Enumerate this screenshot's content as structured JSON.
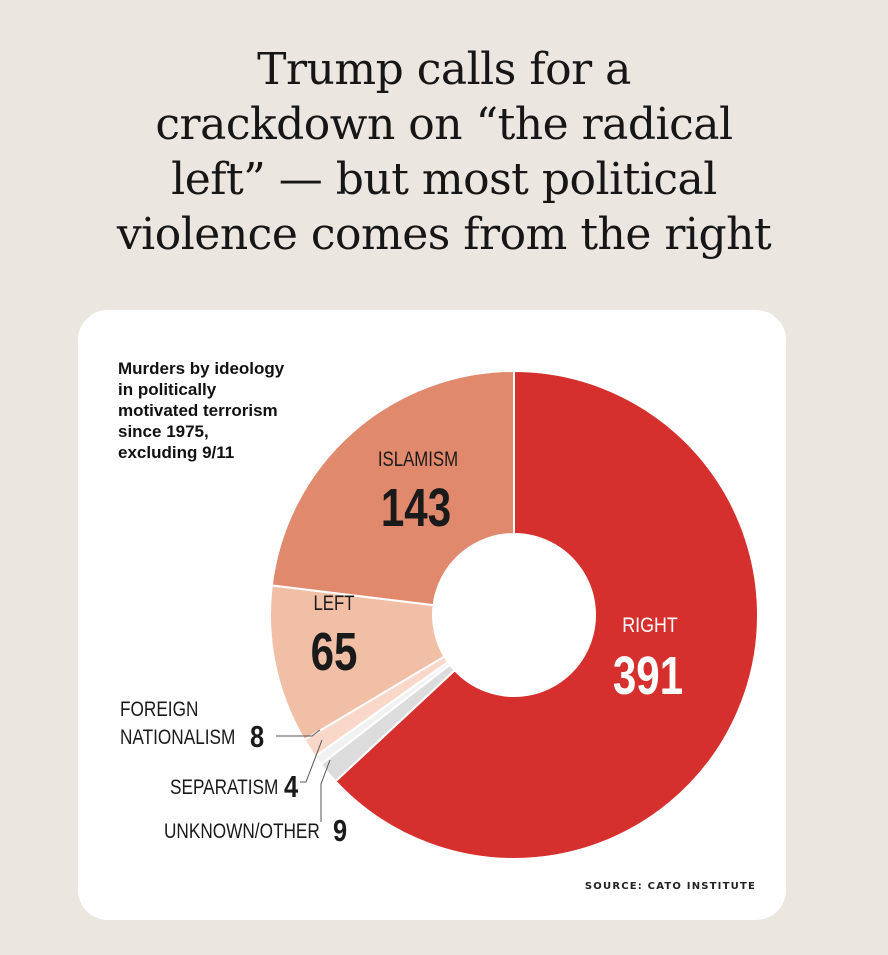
{
  "headline": {
    "line1": "Trump calls for a",
    "line2": "crackdown on “the radical",
    "line3": "left” — but most political",
    "line4": "violence comes from the right"
  },
  "subtitle": {
    "line1": "Murders by ideology",
    "line2": "in politically",
    "line3": "motivated terrorism",
    "line4": "since 1975,",
    "line5": "excluding 9/11"
  },
  "source": "SOURCE: CATO INSTITUTE",
  "chart_data": {
    "type": "pie",
    "donut": true,
    "title": "Murders by ideology in politically motivated terrorism since 1975, excluding 9/11",
    "categories": [
      "RIGHT",
      "UNKNOWN/OTHER",
      "SEPARATISM",
      "FOREIGN NATIONALISM",
      "LEFT",
      "ISLAMISM"
    ],
    "values": [
      391,
      9,
      4,
      8,
      65,
      143
    ],
    "colors": [
      "#d5302d",
      "#dcdcdc",
      "#f1f1f1",
      "#f9d8c9",
      "#f0bfa6",
      "#e0896c"
    ],
    "start_angle_deg": 0,
    "direction": "clockwise",
    "legend": "none (direct labels)"
  }
}
